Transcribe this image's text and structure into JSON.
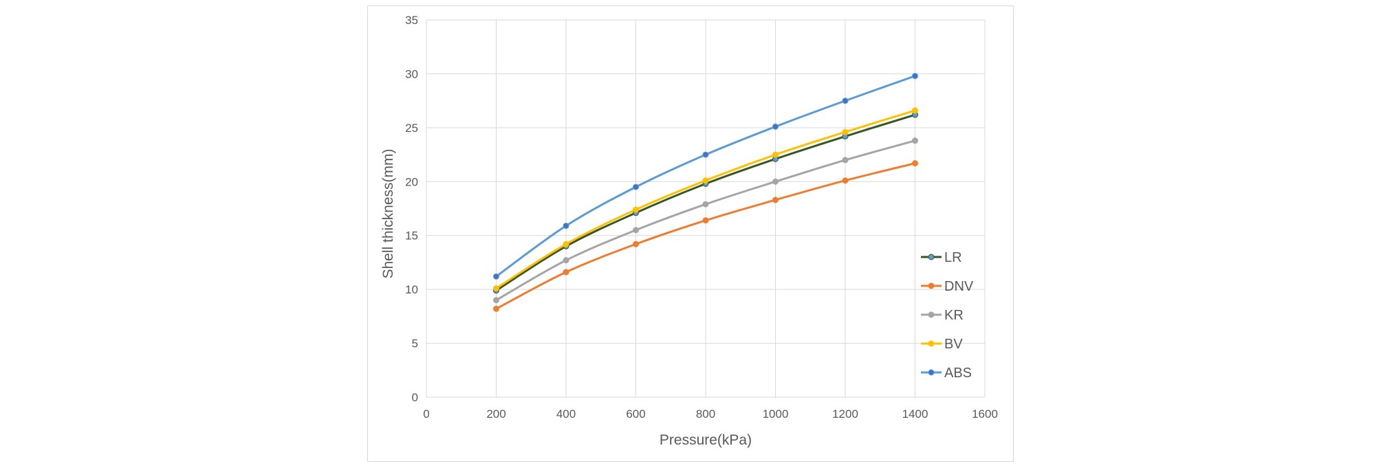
{
  "chart_data": {
    "type": "line",
    "title": "",
    "xlabel": "Pressure(kPa)",
    "ylabel": "Shell thickness(mm)",
    "xlim": [
      0,
      1600
    ],
    "ylim": [
      0,
      35
    ],
    "x_ticks": [
      0,
      200,
      400,
      600,
      800,
      1000,
      1200,
      1400,
      1600
    ],
    "y_ticks": [
      0,
      5,
      10,
      15,
      20,
      25,
      30,
      35
    ],
    "grid": true,
    "smooth": true,
    "legend_position": "right",
    "x": [
      200,
      400,
      600,
      800,
      1000,
      1200,
      1400
    ],
    "series": [
      {
        "name": "LR",
        "color": "#375623",
        "marker_color": "#5b9bd5",
        "values": [
          9.9,
          14.0,
          17.1,
          19.8,
          22.1,
          24.2,
          26.2
        ]
      },
      {
        "name": "DNV",
        "color": "#ed7d31",
        "values": [
          8.2,
          11.6,
          14.2,
          16.4,
          18.3,
          20.1,
          21.7
        ]
      },
      {
        "name": "KR",
        "color": "#a5a5a5",
        "values": [
          9.0,
          12.7,
          15.5,
          17.9,
          20.0,
          22.0,
          23.8
        ]
      },
      {
        "name": "BV",
        "color": "#ffc000",
        "values": [
          10.1,
          14.2,
          17.4,
          20.1,
          22.5,
          24.6,
          26.6
        ]
      },
      {
        "name": "ABS",
        "color": "#5b9bd5",
        "marker_color": "#4472c4",
        "values": [
          11.2,
          15.9,
          19.5,
          22.5,
          25.1,
          27.5,
          29.8
        ]
      }
    ]
  }
}
